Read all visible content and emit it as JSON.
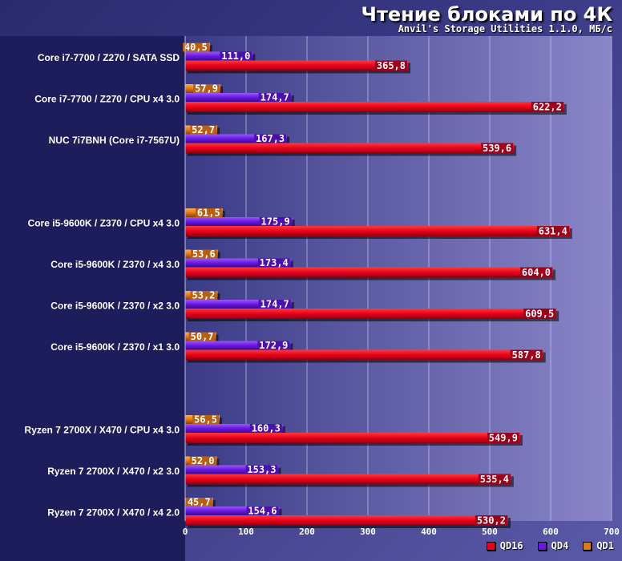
{
  "title": "Чтение блоками по 4К",
  "subtitle": "Anvil's Storage Utilities 1.1.0, МБ/с",
  "colors": {
    "QD16": "#e8001c",
    "QD4": "#6a18e0",
    "QD1": "#e07818"
  },
  "chart_data": {
    "type": "bar",
    "orientation": "horizontal",
    "title": "Чтение блоками по 4К",
    "subtitle": "Anvil's Storage Utilities 1.1.0, МБ/с",
    "xlim": [
      0,
      700
    ],
    "xticks": [
      0,
      100,
      200,
      300,
      400,
      500,
      600,
      700
    ],
    "grid": true,
    "legend_position": "bottom-right",
    "legend_order": [
      "QD16",
      "QD4",
      "QD1"
    ],
    "groups": [
      {
        "rows": [
          {
            "label": "Core i7-7700 / Z270 / SATA SSD",
            "QD1": "40,5",
            "QD4": "111,0",
            "QD16": "365,8"
          },
          {
            "label": "Core i7-7700 / Z270 / CPU x4 3.0",
            "QD1": "57,9",
            "QD4": "174,7",
            "QD16": "622,2"
          },
          {
            "label": "NUC 7i7BNH (Core i7-7567U)",
            "QD1": "52,7",
            "QD4": "167,3",
            "QD16": "539,6"
          }
        ]
      },
      {
        "rows": [
          {
            "label": "Core i5-9600K / Z370 / CPU x4 3.0",
            "QD1": "61,5",
            "QD4": "175,9",
            "QD16": "631,4"
          },
          {
            "label": "Core i5-9600K / Z370 / x4 3.0",
            "QD1": "53,6",
            "QD4": "173,4",
            "QD16": "604,0"
          },
          {
            "label": "Core i5-9600K / Z370 / x2 3.0",
            "QD1": "53,2",
            "QD4": "174,7",
            "QD16": "609,5"
          },
          {
            "label": "Core i5-9600K / Z370 / x1 3.0",
            "QD1": "50,7",
            "QD4": "172,9",
            "QD16": "587,8"
          }
        ]
      },
      {
        "rows": [
          {
            "label": "Ryzen 7 2700X / X470 / CPU x4 3.0",
            "QD1": "56,5",
            "QD4": "160,3",
            "QD16": "549,9"
          },
          {
            "label": "Ryzen 7 2700X / X470 / x2 3.0",
            "QD1": "52,0",
            "QD4": "153,3",
            "QD16": "535,4"
          },
          {
            "label": "Ryzen 7 2700X / X470 / x4 2.0",
            "QD1": "45,7",
            "QD4": "154,6",
            "QD16": "530,2"
          }
        ]
      }
    ]
  }
}
